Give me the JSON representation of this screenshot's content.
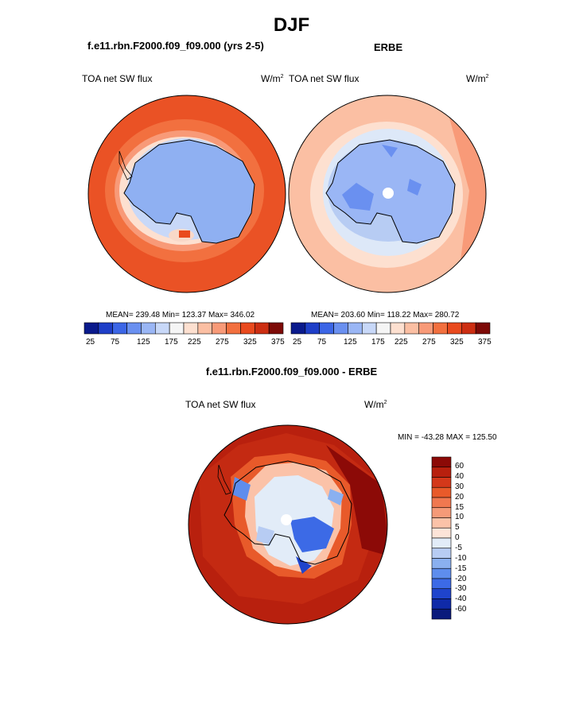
{
  "page_title": "DJF",
  "panels": [
    {
      "case_title": "f.e11.rbn.F2000.f09_f09.000 (yrs 2-5)",
      "field_label": "TOA net SW flux",
      "units": "W/m",
      "units_exp": "2",
      "stats": "MEAN= 239.48  Min= 123.37  Max= 346.02",
      "colorbar_labels": [
        "25",
        "75",
        "125",
        "175",
        "225",
        "275",
        "325",
        "375"
      ]
    },
    {
      "case_title": "ERBE",
      "field_label": "TOA net SW flux",
      "units": "W/m",
      "units_exp": "2",
      "stats": "MEAN= 203.60  Min= 118.22  Max= 280.72",
      "colorbar_labels": [
        "25",
        "75",
        "125",
        "175",
        "225",
        "275",
        "325",
        "375"
      ]
    }
  ],
  "diff": {
    "title": "f.e11.rbn.F2000.f09_f09.000 - ERBE",
    "field_label": "TOA net SW flux",
    "units": "W/m",
    "units_exp": "2",
    "minmax": "MIN = -43.28 MAX = 125.50",
    "legend_labels": [
      "60",
      "40",
      "30",
      "20",
      "15",
      "10",
      "5",
      "0",
      "-5",
      "-10",
      "-15",
      "-20",
      "-30",
      "-40",
      "-60"
    ]
  },
  "colors": {
    "abs_scale": [
      "#0a1a8c",
      "#1f3fc8",
      "#3c66e6",
      "#6a90f0",
      "#9ab6f5",
      "#c8d8f8",
      "#f5f5f5",
      "#fde0d0",
      "#fbbfa3",
      "#f89a78",
      "#f2703f",
      "#e94a1e",
      "#cc2e12",
      "#7d0a07"
    ],
    "diff_scale": [
      "#8c0a07",
      "#b8200e",
      "#d4381a",
      "#e85a2a",
      "#f07850",
      "#f59a78",
      "#fbc2a8",
      "#fde4d8",
      "#e2ecf8",
      "#b7ccf3",
      "#8ab0f0",
      "#5e8ded",
      "#3c6ae6",
      "#1f44cc",
      "#0f2aa8",
      "#0a1a7c"
    ]
  }
}
